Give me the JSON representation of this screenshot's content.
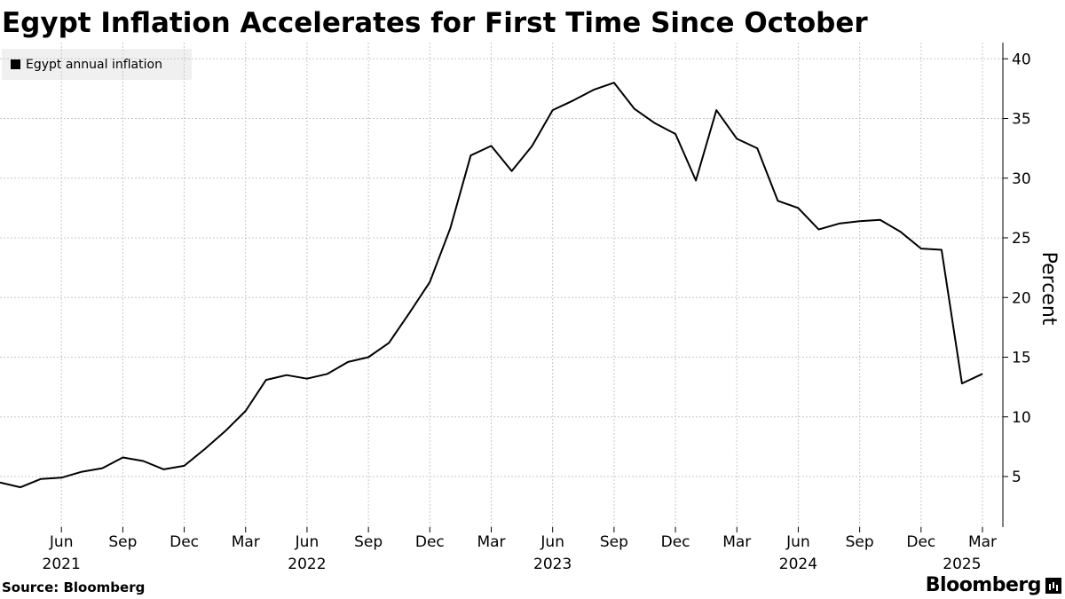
{
  "title": "Egypt Inflation Accelerates for First Time Since October",
  "source": "Source: Bloomberg",
  "brand": "Bloomberg",
  "chart_data": {
    "type": "line",
    "title": "Egypt Inflation Accelerates for First Time Since October",
    "xlabel": "",
    "ylabel": "Percent",
    "ylim": [
      0,
      41
    ],
    "yticks": [
      5,
      10,
      15,
      20,
      25,
      30,
      35,
      40
    ],
    "grid": true,
    "legend_placement": "top-left",
    "line_color": "#000000",
    "x_month_ticks": [
      {
        "date": "2021-06",
        "label": "Jun"
      },
      {
        "date": "2021-09",
        "label": "Sep"
      },
      {
        "date": "2021-12",
        "label": "Dec"
      },
      {
        "date": "2022-03",
        "label": "Mar"
      },
      {
        "date": "2022-06",
        "label": "Jun"
      },
      {
        "date": "2022-09",
        "label": "Sep"
      },
      {
        "date": "2022-12",
        "label": "Dec"
      },
      {
        "date": "2023-03",
        "label": "Mar"
      },
      {
        "date": "2023-06",
        "label": "Jun"
      },
      {
        "date": "2023-09",
        "label": "Sep"
      },
      {
        "date": "2023-12",
        "label": "Dec"
      },
      {
        "date": "2024-03",
        "label": "Mar"
      },
      {
        "date": "2024-06",
        "label": "Jun"
      },
      {
        "date": "2024-09",
        "label": "Sep"
      },
      {
        "date": "2024-12",
        "label": "Dec"
      },
      {
        "date": "2025-03",
        "label": "Mar"
      }
    ],
    "x_year_labels": [
      {
        "date": "2021-06",
        "label": "2021"
      },
      {
        "date": "2022-06",
        "label": "2022"
      },
      {
        "date": "2023-06",
        "label": "2023"
      },
      {
        "date": "2024-06",
        "label": "2024"
      },
      {
        "date": "2025-02",
        "label": "2025"
      }
    ],
    "series": [
      {
        "name": "Egypt annual inflation",
        "x": [
          "2021-03",
          "2021-04",
          "2021-05",
          "2021-06",
          "2021-07",
          "2021-08",
          "2021-09",
          "2021-10",
          "2021-11",
          "2021-12",
          "2022-01",
          "2022-02",
          "2022-03",
          "2022-04",
          "2022-05",
          "2022-06",
          "2022-07",
          "2022-08",
          "2022-09",
          "2022-10",
          "2022-11",
          "2022-12",
          "2023-01",
          "2023-02",
          "2023-03",
          "2023-04",
          "2023-05",
          "2023-06",
          "2023-07",
          "2023-08",
          "2023-09",
          "2023-10",
          "2023-11",
          "2023-12",
          "2024-01",
          "2024-02",
          "2024-03",
          "2024-04",
          "2024-05",
          "2024-06",
          "2024-07",
          "2024-08",
          "2024-09",
          "2024-10",
          "2024-11",
          "2024-12",
          "2025-01",
          "2025-02",
          "2025-03"
        ],
        "values": [
          4.5,
          4.1,
          4.8,
          4.9,
          5.4,
          5.7,
          6.6,
          6.3,
          5.6,
          5.9,
          7.3,
          8.8,
          10.5,
          13.1,
          13.5,
          13.2,
          13.6,
          14.6,
          15.0,
          16.2,
          18.7,
          21.3,
          25.8,
          31.9,
          32.7,
          30.6,
          32.7,
          35.7,
          36.5,
          37.4,
          38.0,
          35.8,
          34.6,
          33.7,
          29.8,
          35.7,
          33.3,
          32.5,
          28.1,
          27.5,
          25.7,
          26.2,
          26.4,
          26.5,
          25.5,
          24.1,
          24.0,
          12.8,
          13.6
        ]
      }
    ]
  }
}
